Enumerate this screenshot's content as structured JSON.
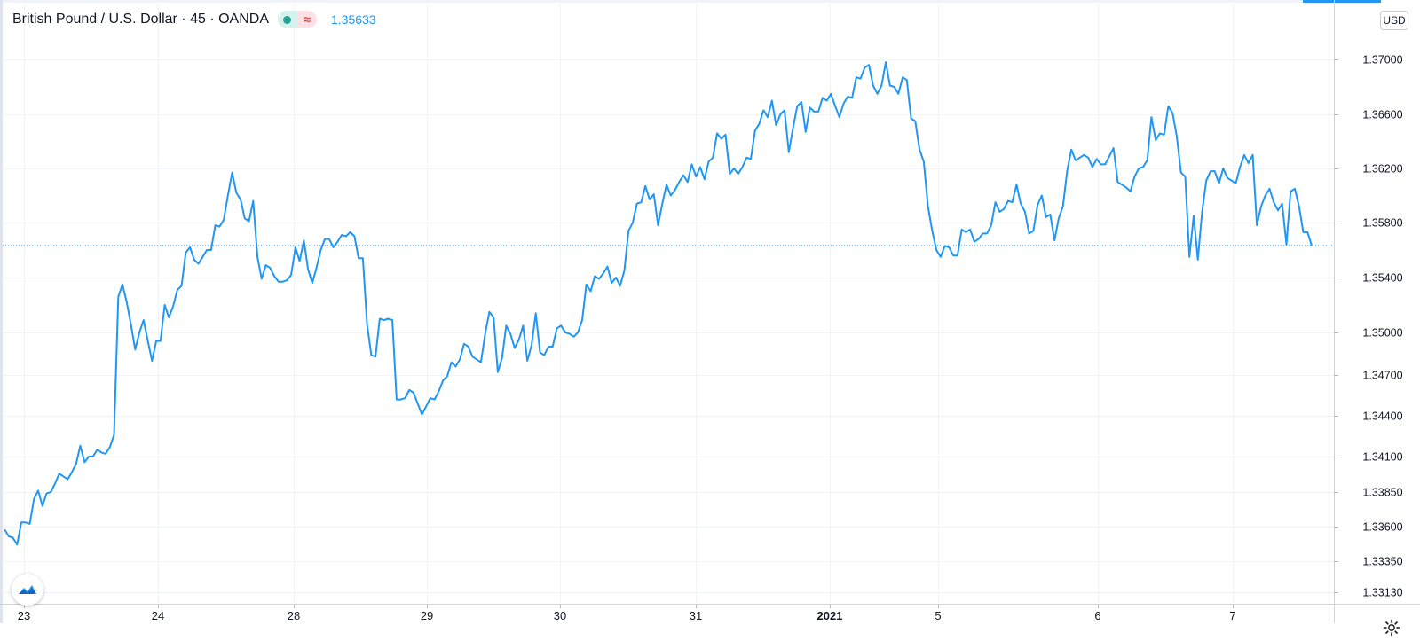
{
  "header": {
    "symbol": "British Pound / U.S. Dollar · 45 · OANDA",
    "last_price": "1.35633",
    "currency": "USD"
  },
  "colors": {
    "line": "#2196f3",
    "grid": "#f0f3fa",
    "axis_text": "#131722",
    "status_green": "#26a69a",
    "status_red": "#ef5350"
  },
  "icons": [
    "tradingview-logo-icon",
    "gear-icon",
    "status-dot-icon",
    "approx-icon"
  ],
  "chart_data": {
    "type": "line",
    "series": [
      {
        "values": [
          1.3358,
          1.3353,
          1.3352,
          1.3347,
          1.3363,
          1.3363,
          1.3362,
          1.338,
          1.3386,
          1.3375,
          1.3384,
          1.3385,
          1.3391,
          1.3398,
          1.3396,
          1.3394,
          1.3399,
          1.3405,
          1.3418,
          1.3406,
          1.341,
          1.341,
          1.3415,
          1.3413,
          1.3412,
          1.3417,
          1.3426,
          1.3526,
          1.3535,
          1.3522,
          1.3506,
          1.3488,
          1.35,
          1.3509,
          1.3494,
          1.348,
          1.3494,
          1.3494,
          1.352,
          1.3511,
          1.3519,
          1.3531,
          1.3534,
          1.3558,
          1.3562,
          1.3553,
          1.355,
          1.3555,
          1.356,
          1.356,
          1.3578,
          1.3577,
          1.3582,
          1.36,
          1.3617,
          1.3602,
          1.3597,
          1.3583,
          1.3581,
          1.3596,
          1.3555,
          1.3539,
          1.3549,
          1.3547,
          1.3541,
          1.3537,
          1.3537,
          1.3538,
          1.3542,
          1.3562,
          1.3552,
          1.3567,
          1.3546,
          1.3536,
          1.3547,
          1.356,
          1.3568,
          1.3568,
          1.3562,
          1.3566,
          1.3571,
          1.357,
          1.3573,
          1.357,
          1.3554,
          1.3554,
          1.3506,
          1.3484,
          1.3483,
          1.351,
          1.3509,
          1.351,
          1.3509,
          1.3452,
          1.3452,
          1.3453,
          1.3459,
          1.3457,
          1.3449,
          1.3441,
          1.3447,
          1.3453,
          1.3452,
          1.3458,
          1.3466,
          1.3469,
          1.3479,
          1.3476,
          1.3481,
          1.3492,
          1.349,
          1.3483,
          1.3481,
          1.3479,
          1.3499,
          1.3515,
          1.3511,
          1.3472,
          1.3482,
          1.3505,
          1.3499,
          1.3489,
          1.3495,
          1.3505,
          1.348,
          1.3491,
          1.3514,
          1.3486,
          1.3484,
          1.349,
          1.349,
          1.3503,
          1.3505,
          1.35,
          1.3499,
          1.3497,
          1.35,
          1.3509,
          1.3535,
          1.353,
          1.3541,
          1.3539,
          1.3543,
          1.3548,
          1.3536,
          1.354,
          1.3534,
          1.3545,
          1.3574,
          1.358,
          1.3594,
          1.3595,
          1.3607,
          1.3597,
          1.3601,
          1.3578,
          1.3594,
          1.3608,
          1.36,
          1.3604,
          1.361,
          1.3615,
          1.361,
          1.3623,
          1.3614,
          1.3621,
          1.3612,
          1.3625,
          1.3628,
          1.3646,
          1.3642,
          1.3645,
          1.3616,
          1.362,
          1.3616,
          1.3621,
          1.3628,
          1.3627,
          1.3648,
          1.3653,
          1.3663,
          1.3658,
          1.367,
          1.3652,
          1.366,
          1.3663,
          1.3632,
          1.365,
          1.3666,
          1.3669,
          1.3647,
          1.3665,
          1.3662,
          1.3662,
          1.3672,
          1.367,
          1.3675,
          1.3666,
          1.3658,
          1.3668,
          1.3673,
          1.3672,
          1.3687,
          1.3686,
          1.3694,
          1.3696,
          1.3681,
          1.3675,
          1.3681,
          1.3698,
          1.3681,
          1.368,
          1.3675,
          1.3687,
          1.3685,
          1.3657,
          1.3655,
          1.3634,
          1.3625,
          1.3592,
          1.3574,
          1.356,
          1.3555,
          1.3563,
          1.3562,
          1.3556,
          1.3556,
          1.3575,
          1.3573,
          1.3575,
          1.3566,
          1.3568,
          1.3572,
          1.3572,
          1.3578,
          1.3595,
          1.3588,
          1.359,
          1.3596,
          1.3595,
          1.3608,
          1.3594,
          1.3588,
          1.3572,
          1.3574,
          1.3593,
          1.36,
          1.3584,
          1.3586,
          1.3567,
          1.3583,
          1.3592,
          1.3618,
          1.3634,
          1.3626,
          1.3628,
          1.363,
          1.3628,
          1.3621,
          1.3627,
          1.3623,
          1.3623,
          1.3629,
          1.3635,
          1.361,
          1.3608,
          1.3606,
          1.3603,
          1.3614,
          1.362,
          1.3621,
          1.3626,
          1.3658,
          1.3641,
          1.3646,
          1.3645,
          1.3666,
          1.3661,
          1.3644,
          1.3617,
          1.3614,
          1.3555,
          1.3585,
          1.3553,
          1.3588,
          1.3611,
          1.3618,
          1.3618,
          1.3609,
          1.362,
          1.3613,
          1.3611,
          1.3609,
          1.3621,
          1.363,
          1.3624,
          1.363,
          1.3578,
          1.3592,
          1.36,
          1.3605,
          1.3595,
          1.3589,
          1.3594,
          1.3564,
          1.3603,
          1.3605,
          1.3592,
          1.3573,
          1.3573,
          1.35633
        ]
      }
    ],
    "x_ticks": [
      "23",
      "24",
      "28",
      "29",
      "30",
      "31",
      "2021",
      "5",
      "6",
      "7"
    ],
    "y_ticks": [
      "1.37000",
      "1.36600",
      "1.36200",
      "1.35800",
      "1.35400",
      "1.35000",
      "1.34700",
      "1.34400",
      "1.34100",
      "1.33850",
      "1.33600",
      "1.33350",
      "1.33130"
    ],
    "y_tick_values": [
      1.37,
      1.366,
      1.362,
      1.358,
      1.354,
      1.35,
      1.347,
      1.344,
      1.341,
      1.3385,
      1.336,
      1.3335,
      1.3313
    ],
    "last_value": 1.35633,
    "grid": true
  }
}
